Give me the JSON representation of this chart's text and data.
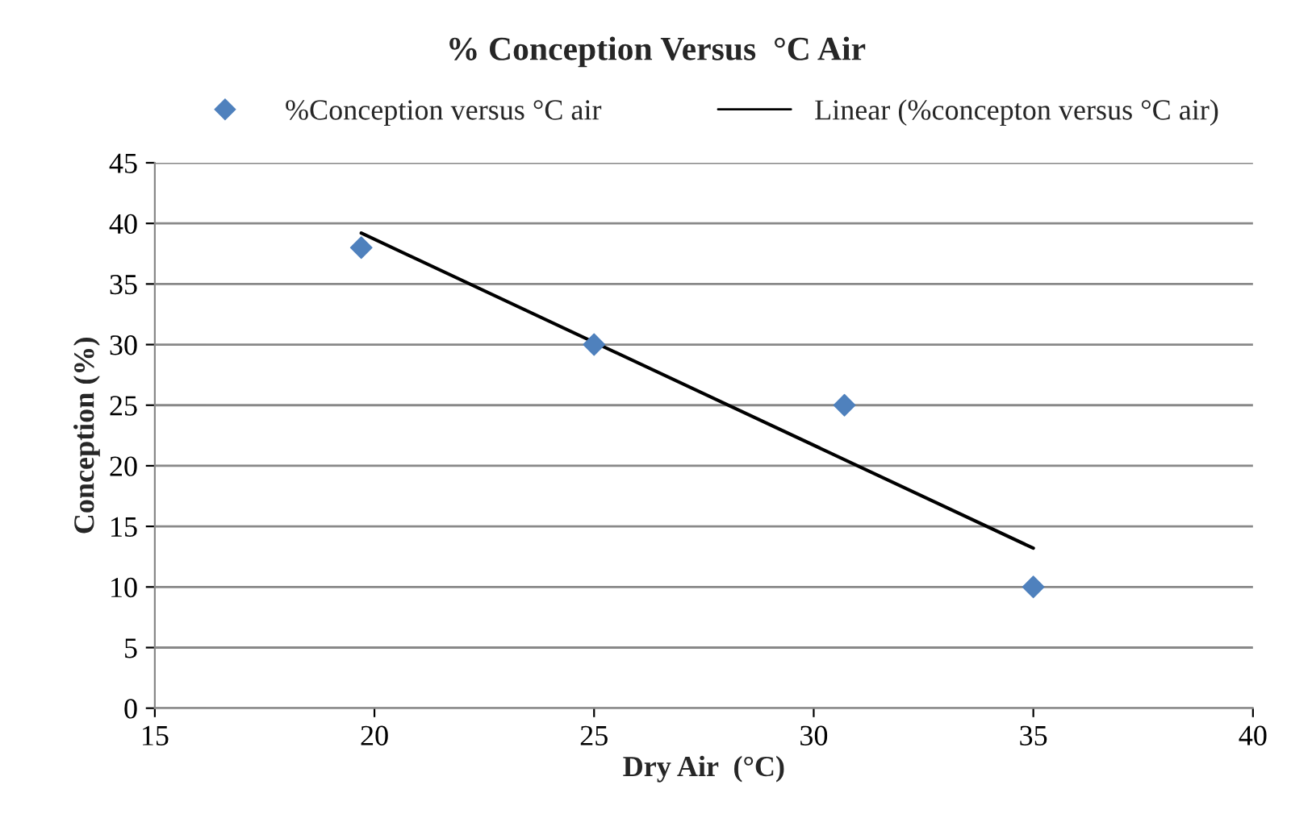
{
  "chart_data": {
    "type": "scatter",
    "title": "% Conception Versus  °C Air",
    "xlabel": "Dry Air  (°C)",
    "ylabel": "Conception (%)",
    "series": [
      {
        "name": "%Conception versus °C air",
        "color": "#4f81bd",
        "marker": "diamond",
        "x": [
          19.7,
          25,
          30.7,
          35
        ],
        "values": [
          38,
          30,
          25,
          10
        ]
      },
      {
        "name": "Linear (%concepton versus °C air)",
        "type": "line",
        "color": "#000000",
        "marker": "none",
        "line_style": "solid",
        "x": [
          19.7,
          35
        ],
        "values": [
          39.2,
          13.2
        ]
      }
    ],
    "xlim": [
      15,
      40
    ],
    "xticks": [
      15,
      20,
      25,
      30,
      35,
      40
    ],
    "ylim": [
      0,
      45
    ],
    "yticks": [
      0,
      5,
      10,
      15,
      20,
      25,
      30,
      35,
      40,
      45
    ],
    "grid": "y",
    "legend": "top"
  }
}
